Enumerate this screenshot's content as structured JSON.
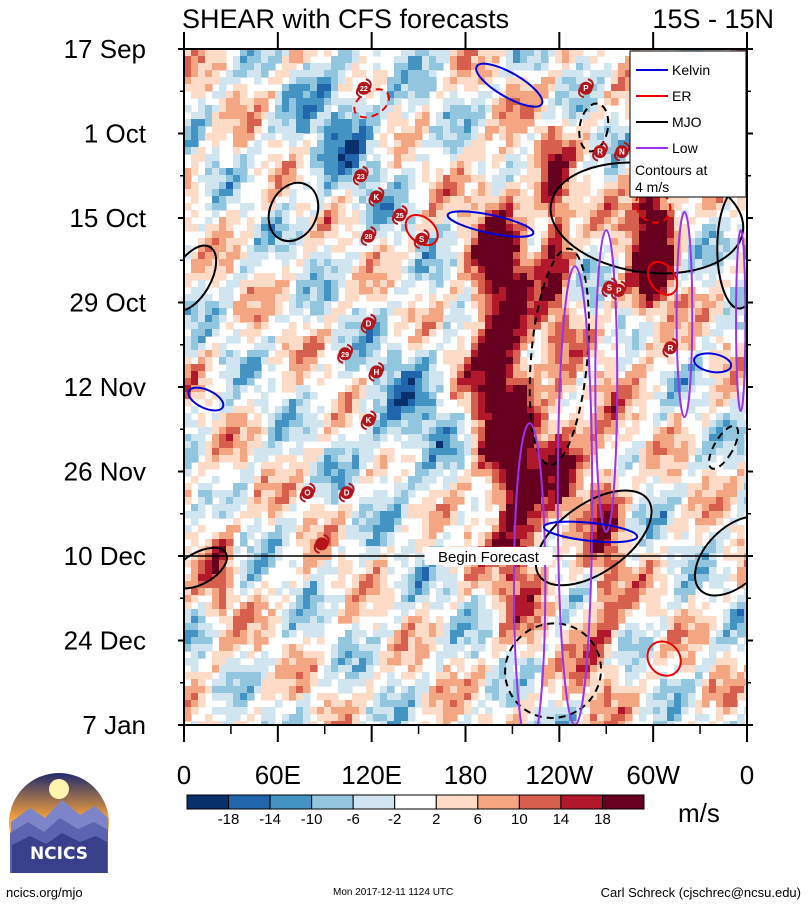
{
  "chart_data": {
    "type": "heatmap",
    "title": "SHEAR with CFS forecasts",
    "lat_band": "15S - 15N",
    "xlabel": "",
    "ylabel": "",
    "x_ticks": [
      {
        "lon": 0,
        "label": "0"
      },
      {
        "lon": 60,
        "label": "60E"
      },
      {
        "lon": 120,
        "label": "120E"
      },
      {
        "lon": 180,
        "label": "180"
      },
      {
        "lon": 240,
        "label": "120W"
      },
      {
        "lon": 300,
        "label": "60W"
      },
      {
        "lon": 360,
        "label": "0"
      }
    ],
    "xlim": [
      0,
      360
    ],
    "y_ticks": [
      {
        "day": 0,
        "label": "17 Sep"
      },
      {
        "day": 14,
        "label": "1 Oct"
      },
      {
        "day": 28,
        "label": "15 Oct"
      },
      {
        "day": 42,
        "label": "29 Oct"
      },
      {
        "day": 56,
        "label": "12 Nov"
      },
      {
        "day": 70,
        "label": "26 Nov"
      },
      {
        "day": 84,
        "label": "10 Dec"
      },
      {
        "day": 98,
        "label": "24 Dec"
      },
      {
        "day": 112,
        "label": "7 Jan"
      }
    ],
    "ylim_days": [
      0,
      112
    ],
    "forecast_start_day": 84,
    "forecast_label": "Begin Forecast",
    "colorbar": {
      "levels": [
        "-18",
        "-14",
        "-10",
        "-6",
        "-2",
        "2",
        "6",
        "10",
        "14",
        "18"
      ],
      "colors": [
        "#08306b",
        "#2166ac",
        "#4393c3",
        "#92c5de",
        "#d1e5f0",
        "#ffffff",
        "#fddbc7",
        "#f4a582",
        "#d6604d",
        "#b2182b",
        "#67001f"
      ],
      "units": "m/s"
    },
    "legend": {
      "position": "top-right",
      "entries": [
        {
          "label": "Kelvin",
          "color": "#0000dd"
        },
        {
          "label": "ER",
          "color": "#ee0000"
        },
        {
          "label": "MJO",
          "color": "#000000"
        },
        {
          "label": "Low",
          "color": "#9933ee"
        }
      ],
      "note": "Contours at\n4 m/s"
    },
    "features": [
      {
        "type": "mjo",
        "lon": 296,
        "day": 28,
        "rx": 62,
        "ry": 9,
        "rot": 8,
        "dash": false
      },
      {
        "type": "mjo",
        "lon": 355,
        "day": 33,
        "rx": 14,
        "ry": 10,
        "rot": 0,
        "dash": false
      },
      {
        "type": "mjo",
        "lon": 70,
        "day": 27,
        "rx": 15,
        "ry": 5,
        "rot": 25,
        "dash": false
      },
      {
        "type": "mjo",
        "lon": 5,
        "day": 38,
        "rx": 12,
        "ry": 6,
        "rot": 30,
        "dash": false
      },
      {
        "type": "mjo",
        "lon": 240,
        "day": 51,
        "rx": 18,
        "ry": 18,
        "rot": 5,
        "dash": true
      },
      {
        "type": "mjo",
        "lon": 262,
        "day": 13,
        "rx": 9,
        "ry": 4,
        "rot": 10,
        "dash": true
      },
      {
        "type": "mjo",
        "lon": 262,
        "day": 81,
        "rx": 22,
        "ry": 11,
        "rot": 55,
        "dash": false
      },
      {
        "type": "mjo",
        "lon": 352,
        "day": 84,
        "rx": 18,
        "ry": 8,
        "rot": 45,
        "dash": false
      },
      {
        "type": "mjo",
        "lon": 10,
        "day": 86,
        "rx": 10,
        "ry": 5,
        "rot": 60,
        "dash": false
      },
      {
        "type": "mjo",
        "lon": 236,
        "day": 103,
        "rx": 30,
        "ry": 8,
        "rot": 60,
        "dash": true
      },
      {
        "type": "mjo",
        "lon": 345,
        "day": 66,
        "rx": 6,
        "ry": 4,
        "rot": 30,
        "dash": true
      },
      {
        "type": "low",
        "lon": 221,
        "day": 89,
        "rx": 10,
        "ry": 27,
        "rot": 0,
        "dash": false
      },
      {
        "type": "low",
        "lon": 250,
        "day": 74,
        "rx": 11,
        "ry": 38,
        "rot": 0,
        "dash": false
      },
      {
        "type": "low",
        "lon": 270,
        "day": 55,
        "rx": 7,
        "ry": 25,
        "rot": 0,
        "dash": false
      },
      {
        "type": "low",
        "lon": 320,
        "day": 44,
        "rx": 5,
        "ry": 17,
        "rot": 0,
        "dash": false
      },
      {
        "type": "low",
        "lon": 356,
        "day": 45,
        "rx": 3,
        "ry": 15,
        "rot": 0,
        "dash": false
      },
      {
        "type": "kelvin",
        "lon": 208,
        "day": 6,
        "rx": 24,
        "ry": 2,
        "rot": 30,
        "dash": false
      },
      {
        "type": "kelvin",
        "lon": 196,
        "day": 29,
        "rx": 28,
        "ry": 1.5,
        "rot": 12,
        "dash": false
      },
      {
        "type": "kelvin",
        "lon": 260,
        "day": 80,
        "rx": 30,
        "ry": 1.5,
        "rot": 6,
        "dash": false
      },
      {
        "type": "kelvin",
        "lon": 338,
        "day": 52,
        "rx": 12,
        "ry": 1.5,
        "rot": 10,
        "dash": false
      },
      {
        "type": "kelvin",
        "lon": 14,
        "day": 58,
        "rx": 12,
        "ry": 1.5,
        "rot": 25,
        "dash": false
      },
      {
        "type": "er",
        "lon": 120,
        "day": 9,
        "rx": 12,
        "ry": 2,
        "rot": -30,
        "dash": true
      },
      {
        "type": "er",
        "lon": 300,
        "day": 26,
        "rx": 10,
        "ry": 3,
        "rot": -50,
        "dash": true
      },
      {
        "type": "er",
        "lon": 307,
        "day": 101,
        "rx": 10,
        "ry": 3,
        "rot": -40,
        "dash": false
      },
      {
        "type": "er",
        "lon": 152,
        "day": 30,
        "rx": 8,
        "ry": 3,
        "rot": -50,
        "dash": false
      },
      {
        "type": "er",
        "lon": 306,
        "day": 38,
        "rx": 8,
        "ry": 3,
        "rot": -35,
        "dash": false
      }
    ],
    "storms": [
      {
        "label": "22",
        "lon": 115,
        "day": 6.5
      },
      {
        "label": "P",
        "lon": 257,
        "day": 6.5
      },
      {
        "label": "23",
        "lon": 113,
        "day": 21
      },
      {
        "label": "R",
        "lon": 266,
        "day": 17
      },
      {
        "label": "N",
        "lon": 280,
        "day": 17
      },
      {
        "label": "K",
        "lon": 123,
        "day": 24.5
      },
      {
        "label": "25",
        "lon": 138,
        "day": 27.5
      },
      {
        "label": "28",
        "lon": 118,
        "day": 31
      },
      {
        "label": "S",
        "lon": 152,
        "day": 31.5
      },
      {
        "label": "S",
        "lon": 272,
        "day": 39.5
      },
      {
        "label": "P",
        "lon": 278,
        "day": 40
      },
      {
        "label": "D",
        "lon": 118,
        "day": 45.5
      },
      {
        "label": "29",
        "lon": 103,
        "day": 50.5
      },
      {
        "label": "H",
        "lon": 123,
        "day": 53.5
      },
      {
        "label": "R",
        "lon": 311,
        "day": 49.5
      },
      {
        "label": "K",
        "lon": 118,
        "day": 61.5
      },
      {
        "label": "O",
        "lon": 79,
        "day": 73.5
      },
      {
        "label": "D",
        "lon": 104,
        "day": 73.5
      },
      {
        "label": "",
        "lon": 88,
        "day": 82
      }
    ]
  },
  "branding": {
    "logo_text": "NCICS"
  },
  "footer": {
    "left": "ncics.org/mjo",
    "middle": "Mon 2017-12-11 1124 UTC",
    "right": "Carl Schreck (cjschrec@ncsu.edu)"
  }
}
